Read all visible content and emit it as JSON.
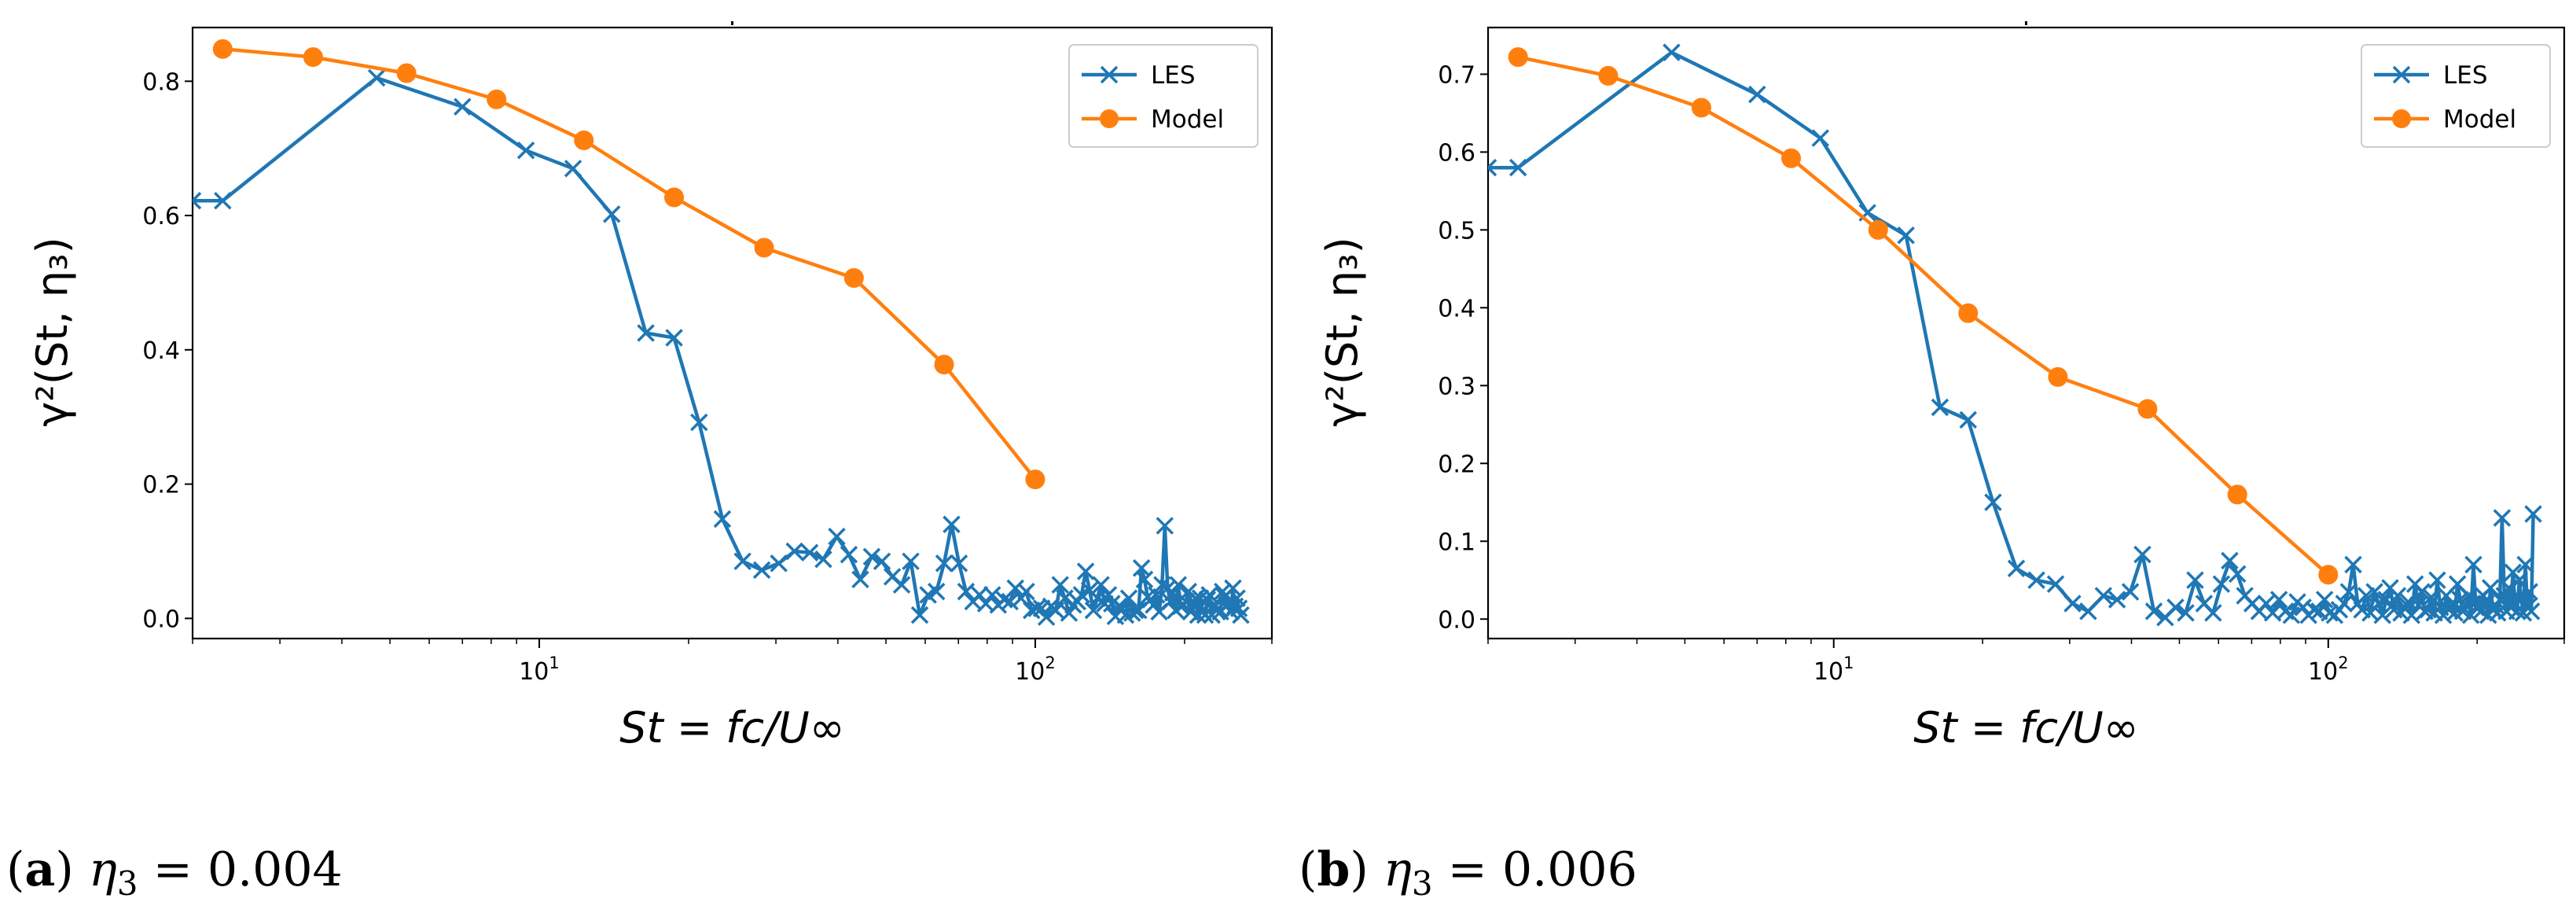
{
  "figure": {
    "captions": [
      {
        "letter": "a",
        "lead": "(",
        "tail": ")",
        "symbol": "η",
        "subscript": "3",
        "relation": " = 0.004"
      },
      {
        "letter": "b",
        "lead": "(",
        "tail": ")",
        "symbol": "η",
        "subscript": "3",
        "relation": " = 0.006"
      }
    ]
  },
  "chart_data": [
    {
      "type": "line",
      "title": "",
      "xlabel": "St = fc/U∞",
      "ylabel": "γ²(St, η₃)",
      "xscale": "log",
      "xlim": [
        2.0,
        300
      ],
      "ylim": [
        -0.03,
        0.88
      ],
      "yticks": [
        0.0,
        0.2,
        0.4,
        0.6,
        0.8
      ],
      "ytick_labels": [
        "0.0",
        "0.2",
        "0.4",
        "0.6",
        "0.8"
      ],
      "xtick_labels": [
        {
          "base": "10",
          "exp": "1"
        },
        {
          "base": "10",
          "exp": "2"
        }
      ],
      "xticks": [
        10,
        100
      ],
      "legend": {
        "position": "top-right",
        "entries": [
          "LES",
          "Model"
        ]
      },
      "colors": {
        "LES": "#1f77b4",
        "Model": "#ff7f0e"
      },
      "series": [
        {
          "name": "LES",
          "marker": "x",
          "x": [
            2.0,
            2.3,
            4.7,
            7.0,
            9.4,
            11.7,
            14.0,
            16.4,
            18.7,
            21.0,
            23.4,
            25.7,
            28.1,
            30.4,
            32.7,
            35.1,
            37.4,
            39.8,
            42.1,
            44.4,
            46.8,
            49.1,
            51.5,
            53.8,
            56.1,
            58.5,
            60.8,
            63.2,
            65.5,
            67.8,
            70.2,
            72.5,
            74.9,
            77.2,
            79.5,
            81.9,
            84.2,
            86.6,
            88.9,
            91.2,
            93.6,
            95.9,
            98.3,
            100.6,
            103.0,
            105.3,
            107.6,
            110.0,
            112.3,
            114.7,
            117.0,
            119.3,
            121.7,
            124.0,
            126.4,
            128.7,
            131.0,
            133.4,
            135.7,
            138.1,
            140.4,
            142.7,
            145.1,
            147.4,
            149.8,
            152.1,
            154.4,
            156.8,
            159.1,
            161.5,
            163.8,
            166.1,
            168.5,
            170.8,
            173.2,
            175.5,
            177.8,
            180.2,
            182.5,
            184.9,
            187.2,
            189.5,
            191.9,
            194.2,
            196.6,
            198.9,
            201.2,
            203.6,
            205.9,
            208.3,
            210.6,
            212.9,
            215.3,
            217.6,
            220.0,
            222.3,
            224.6,
            227.0,
            229.3,
            231.7,
            234.0,
            236.3,
            238.7,
            241.0,
            243.4,
            245.7,
            248.0,
            250.4,
            252.7,
            255.1,
            257.4,
            259.7
          ],
          "y": [
            0.622,
            0.622,
            0.805,
            0.762,
            0.697,
            0.67,
            0.602,
            0.425,
            0.418,
            0.292,
            0.148,
            0.085,
            0.072,
            0.082,
            0.1,
            0.098,
            0.088,
            0.122,
            0.095,
            0.058,
            0.092,
            0.085,
            0.062,
            0.05,
            0.085,
            0.005,
            0.035,
            0.04,
            0.082,
            0.14,
            0.082,
            0.04,
            0.025,
            0.035,
            0.022,
            0.035,
            0.02,
            0.028,
            0.025,
            0.045,
            0.03,
            0.04,
            0.012,
            0.015,
            0.015,
            0.002,
            0.018,
            0.012,
            0.05,
            0.03,
            0.008,
            0.02,
            0.025,
            0.035,
            0.07,
            0.042,
            0.012,
            0.03,
            0.05,
            0.022,
            0.035,
            0.022,
            0.003,
            0.018,
            0.015,
            0.005,
            0.03,
            0.008,
            0.012,
            0.012,
            0.075,
            0.058,
            0.032,
            0.028,
            0.02,
            0.035,
            0.01,
            0.05,
            0.138,
            0.045,
            0.025,
            0.038,
            0.012,
            0.05,
            0.018,
            0.02,
            0.025,
            0.04,
            0.01,
            0.025,
            0.03,
            0.005,
            0.03,
            0.01,
            0.005,
            0.028,
            0.035,
            0.005,
            0.02,
            0.012,
            0.015,
            0.01,
            0.04,
            0.032,
            0.02,
            0.022,
            0.01,
            0.045,
            0.018,
            0.03,
            0.015,
            0.005
          ]
        },
        {
          "name": "Model",
          "marker": "o",
          "x": [
            2.3,
            3.5,
            5.4,
            8.2,
            12.3,
            18.7,
            28.4,
            43.1,
            65.5,
            100.0
          ],
          "y": [
            0.848,
            0.836,
            0.812,
            0.773,
            0.712,
            0.627,
            0.552,
            0.507,
            0.378,
            0.207
          ]
        }
      ]
    },
    {
      "type": "line",
      "title": "",
      "xlabel": "St = fc/U∞",
      "ylabel": "γ²(St, η₃)",
      "xscale": "log",
      "xlim": [
        2.0,
        300
      ],
      "ylim": [
        -0.025,
        0.76
      ],
      "yticks": [
        0.0,
        0.1,
        0.2,
        0.3,
        0.4,
        0.5,
        0.6,
        0.7
      ],
      "ytick_labels": [
        "0.0",
        "0.1",
        "0.2",
        "0.3",
        "0.4",
        "0.5",
        "0.6",
        "0.7"
      ],
      "xtick_labels": [
        {
          "base": "10",
          "exp": "1"
        },
        {
          "base": "10",
          "exp": "2"
        }
      ],
      "xticks": [
        10,
        100
      ],
      "legend": {
        "position": "top-right",
        "entries": [
          "LES",
          "Model"
        ]
      },
      "colors": {
        "LES": "#1f77b4",
        "Model": "#ff7f0e"
      },
      "series": [
        {
          "name": "LES",
          "marker": "x",
          "x": [
            2.0,
            2.3,
            4.7,
            7.0,
            9.4,
            11.7,
            14.0,
            16.4,
            18.7,
            21.0,
            23.4,
            25.7,
            28.1,
            30.4,
            32.7,
            35.1,
            37.4,
            39.8,
            42.1,
            44.4,
            46.8,
            49.1,
            51.5,
            53.8,
            56.1,
            58.5,
            60.8,
            63.2,
            65.5,
            67.8,
            70.2,
            72.5,
            74.9,
            77.2,
            79.5,
            81.9,
            84.2,
            86.6,
            88.9,
            91.2,
            93.6,
            95.9,
            98.3,
            100.6,
            103.0,
            105.3,
            107.6,
            110.0,
            112.3,
            114.7,
            117.0,
            119.3,
            121.7,
            124.0,
            126.4,
            128.7,
            131.0,
            133.4,
            135.7,
            138.1,
            140.4,
            142.7,
            145.1,
            147.4,
            149.8,
            152.1,
            154.4,
            156.8,
            159.1,
            161.5,
            163.8,
            166.1,
            168.5,
            170.8,
            173.2,
            175.5,
            177.8,
            180.2,
            182.5,
            184.9,
            187.2,
            189.5,
            191.9,
            194.2,
            196.6,
            198.9,
            201.2,
            203.6,
            205.9,
            208.3,
            210.6,
            212.9,
            215.3,
            217.6,
            220.0,
            222.3,
            224.6,
            227.0,
            229.3,
            231.7,
            234.0,
            236.3,
            238.7,
            241.0,
            243.4,
            245.7,
            248.0,
            250.4,
            252.7,
            255.1,
            257.4,
            259.7
          ],
          "y": [
            0.58,
            0.58,
            0.728,
            0.674,
            0.618,
            0.522,
            0.493,
            0.272,
            0.256,
            0.15,
            0.065,
            0.05,
            0.045,
            0.02,
            0.01,
            0.03,
            0.025,
            0.035,
            0.083,
            0.01,
            0.002,
            0.015,
            0.008,
            0.05,
            0.02,
            0.008,
            0.045,
            0.075,
            0.058,
            0.03,
            0.02,
            0.01,
            0.02,
            0.008,
            0.025,
            0.01,
            0.005,
            0.022,
            0.015,
            0.005,
            0.012,
            0.01,
            0.025,
            0.008,
            0.005,
            0.012,
            0.02,
            0.035,
            0.07,
            0.02,
            0.012,
            0.03,
            0.008,
            0.035,
            0.02,
            0.005,
            0.025,
            0.04,
            0.012,
            0.03,
            0.008,
            0.015,
            0.022,
            0.005,
            0.045,
            0.018,
            0.035,
            0.01,
            0.012,
            0.028,
            0.008,
            0.05,
            0.015,
            0.005,
            0.03,
            0.012,
            0.02,
            0.008,
            0.045,
            0.025,
            0.01,
            0.018,
            0.03,
            0.005,
            0.07,
            0.015,
            0.025,
            0.01,
            0.03,
            0.02,
            0.005,
            0.04,
            0.012,
            0.018,
            0.008,
            0.025,
            0.13,
            0.03,
            0.01,
            0.04,
            0.015,
            0.06,
            0.02,
            0.01,
            0.05,
            0.025,
            0.008,
            0.07,
            0.015,
            0.035,
            0.01,
            0.135
          ]
        },
        {
          "name": "Model",
          "marker": "o",
          "x": [
            2.3,
            3.5,
            5.4,
            8.2,
            12.3,
            18.7,
            28.4,
            43.1,
            65.5,
            100.0
          ],
          "y": [
            0.722,
            0.698,
            0.657,
            0.592,
            0.5,
            0.393,
            0.311,
            0.27,
            0.16,
            0.057
          ]
        }
      ]
    }
  ]
}
